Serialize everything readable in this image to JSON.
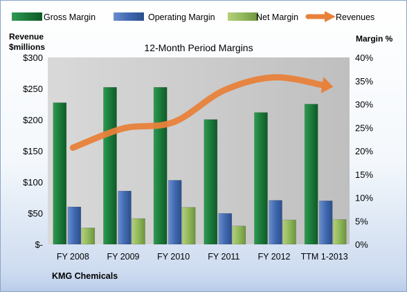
{
  "chart_data": {
    "type": "bar",
    "title": "12-Month Period Margins",
    "categories": [
      "FY 2008",
      "FY 2009",
      "FY 2010",
      "FY 2011",
      "FY 2012",
      "TTM 1-2013"
    ],
    "series": [
      {
        "name": "Gross Margin",
        "values": [
          30.3,
          33.6,
          33.6,
          26.7,
          28.2,
          30.0
        ],
        "color": "#1e7a3c"
      },
      {
        "name": "Operating Margin",
        "values": [
          8.0,
          11.4,
          13.7,
          6.6,
          9.4,
          9.3
        ],
        "color": "#4169b0"
      },
      {
        "name": "Net Margin",
        "values": [
          3.5,
          5.5,
          7.9,
          3.9,
          5.2,
          5.3
        ],
        "color": "#8fb85a"
      }
    ],
    "line_series": {
      "name": "Revenues",
      "values": [
        155,
        186,
        196,
        247,
        268,
        255
      ],
      "color": "#e8813a"
    },
    "left_axis": {
      "title_line1": "Revenue",
      "title_line2": "$millions",
      "ylim": [
        0,
        300
      ],
      "ticks": [
        "$-",
        "$50",
        "$100",
        "$150",
        "$200",
        "$250",
        "$300"
      ]
    },
    "right_axis": {
      "title": "Margin %",
      "ylim": [
        0,
        40
      ],
      "ticks": [
        "0%",
        "5%",
        "10%",
        "15%",
        "20%",
        "25%",
        "30%",
        "35%",
        "40%"
      ]
    },
    "legend_position": "top",
    "grid": false
  },
  "footer": {
    "company": "KMG Chemicals"
  }
}
